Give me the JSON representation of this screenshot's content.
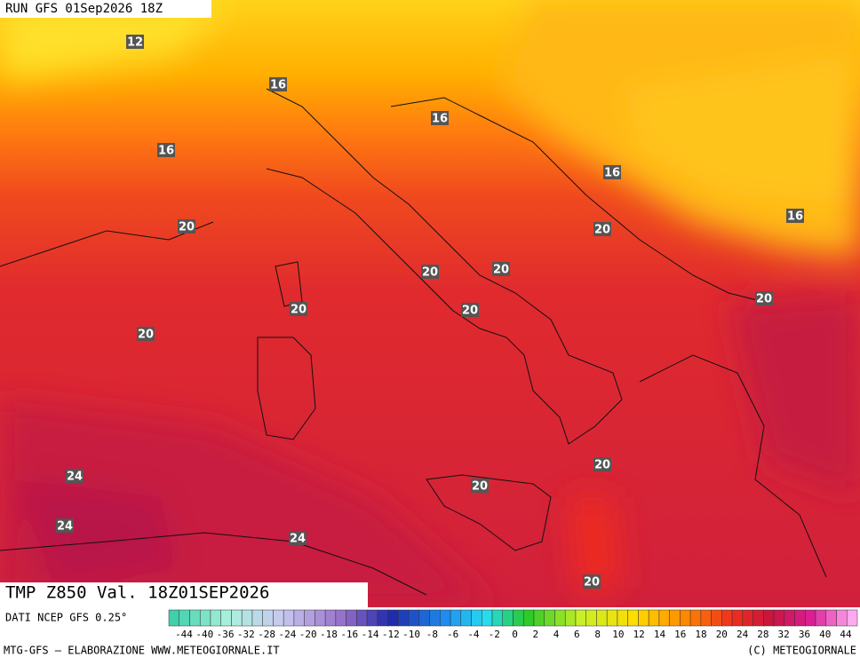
{
  "header": {
    "run": "RUN GFS 01Sep2026 18Z"
  },
  "contour_labels": [
    12,
    16,
    16,
    16,
    16,
    16,
    20,
    20,
    20,
    20,
    20,
    20,
    20,
    20,
    20,
    24,
    20,
    24,
    24,
    20
  ],
  "footer": {
    "field": "TMP Z850 Val. 18Z01SEP2026",
    "source": "DATI NCEP GFS 0.25°",
    "credit": "MTG-GFS — ELABORAZIONE WWW.METEOGIORNALE.IT",
    "copyright": "(C) METEOGIORNALE"
  },
  "colorbar": {
    "labels": [
      -44,
      -40,
      -36,
      -32,
      -28,
      -24,
      -20,
      -18,
      -16,
      -14,
      -12,
      -10,
      -8,
      -6,
      -4,
      -2,
      0,
      2,
      4,
      6,
      8,
      10,
      12,
      14,
      16,
      18,
      20,
      24,
      28,
      32,
      36,
      40,
      44
    ]
  }
}
